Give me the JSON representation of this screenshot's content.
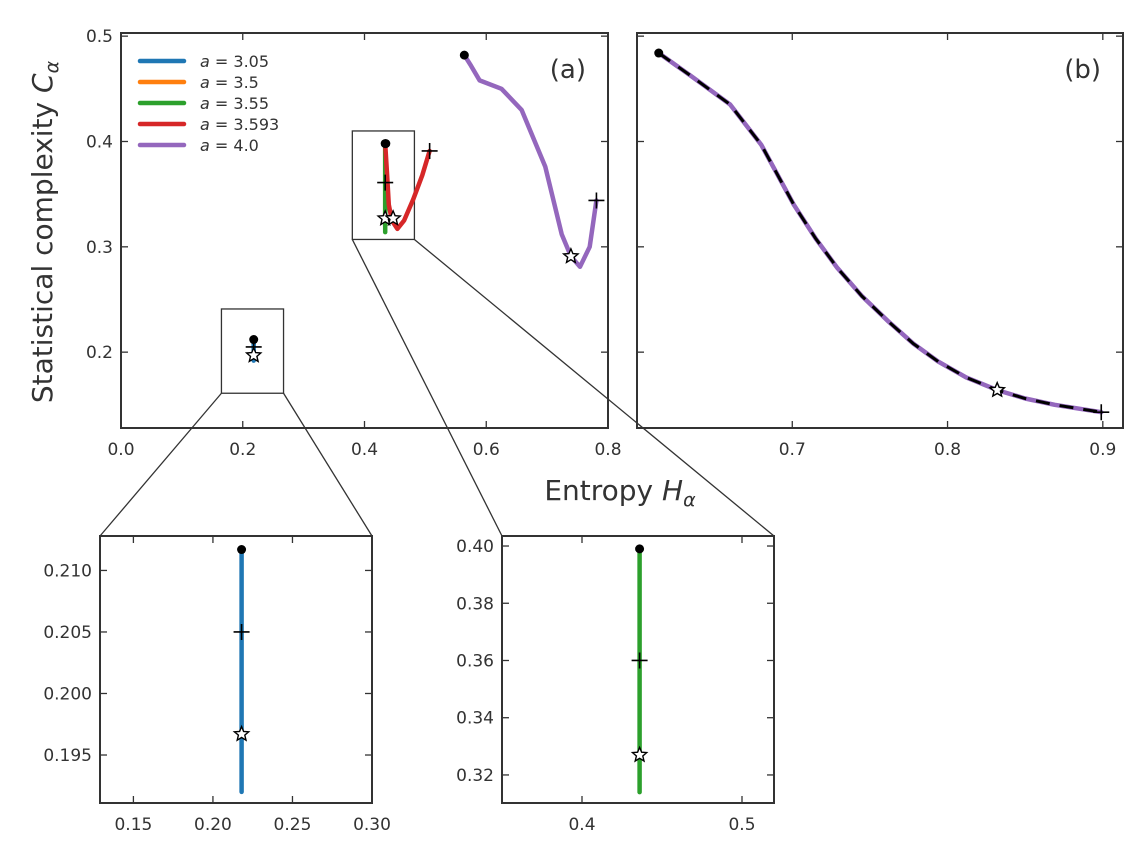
{
  "colors": {
    "a305": "#1f77b4",
    "a35": "#ff7f0e",
    "a355": "#2ca02c",
    "a3593": "#d62728",
    "a40": "#9467bd",
    "frame": "#333333",
    "overlay": "#000000"
  },
  "labels": {
    "xlabel_main": "Entropy",
    "xlabel_sub": "H",
    "ylabel_main": "Statistical complexity",
    "ylabel_sub": "C",
    "subscript": "α"
  },
  "chart_data": [
    {
      "id": "a",
      "type": "line",
      "panel_label": "(a)",
      "xlim": [
        0.0,
        0.8
      ],
      "ylim": [
        0.128,
        0.503
      ],
      "xticks": [
        0.0,
        0.2,
        0.4,
        0.6,
        0.8
      ],
      "xticklabels": [
        "0.0",
        "0.2",
        "0.4",
        "0.6",
        "0.8"
      ],
      "yticks": [
        0.2,
        0.3,
        0.4,
        0.5
      ],
      "yticklabels": [
        "0.2",
        "0.3",
        "0.4",
        "0.5"
      ],
      "legend": "top-left",
      "zoom_boxes": [
        {
          "x": [
            0.165,
            0.267
          ],
          "y": [
            0.161,
            0.241
          ]
        },
        {
          "x": [
            0.38,
            0.482
          ],
          "y": [
            0.307,
            0.41
          ]
        }
      ],
      "series": [
        {
          "name": "a = 3.05",
          "color_key": "a305",
          "x": [
            0.218,
            0.218
          ],
          "y": [
            0.212,
            0.192
          ],
          "start": [
            0.218,
            0.212
          ],
          "plus": [
            0.218,
            0.205
          ],
          "star": [
            0.218,
            0.197
          ]
        },
        {
          "name": "a = 3.5",
          "color_key": "a35",
          "x": [
            0.434,
            0.434
          ],
          "y": [
            0.398,
            0.32
          ],
          "start": null,
          "plus": null,
          "star": null
        },
        {
          "name": "a = 3.55",
          "color_key": "a355",
          "x": [
            0.434,
            0.434
          ],
          "y": [
            0.398,
            0.314
          ],
          "start": [
            0.434,
            0.398
          ],
          "plus": [
            0.434,
            0.361
          ],
          "star": [
            0.434,
            0.327
          ]
        },
        {
          "name": "a = 3.593",
          "color_key": "a3593",
          "x": [
            0.434,
            0.437,
            0.44,
            0.445,
            0.454,
            0.465,
            0.48,
            0.495,
            0.507
          ],
          "y": [
            0.398,
            0.37,
            0.34,
            0.325,
            0.317,
            0.325,
            0.345,
            0.368,
            0.391
          ],
          "start": [
            0.435,
            0.398
          ],
          "plus": [
            0.507,
            0.391
          ],
          "star": [
            0.447,
            0.327
          ]
        },
        {
          "name": "a = 4.0",
          "color_key": "a40",
          "x": [
            0.564,
            0.575,
            0.589,
            0.625,
            0.658,
            0.697,
            0.724,
            0.739,
            0.754,
            0.77,
            0.781
          ],
          "y": [
            0.482,
            0.472,
            0.458,
            0.45,
            0.43,
            0.376,
            0.312,
            0.291,
            0.281,
            0.3,
            0.344
          ],
          "start": [
            0.564,
            0.482
          ],
          "plus": [
            0.781,
            0.344
          ],
          "star": [
            0.739,
            0.291
          ]
        }
      ]
    },
    {
      "id": "b",
      "type": "line",
      "panel_label": "(b)",
      "xlim": [
        0.6,
        0.913
      ],
      "ylim": [
        0.128,
        0.503
      ],
      "xticks": [
        0.7,
        0.8,
        0.9
      ],
      "xticklabels": [
        "0.7",
        "0.8",
        "0.9"
      ],
      "yticks": [
        0.2,
        0.3,
        0.4,
        0.5
      ],
      "yticklabels": [],
      "series": [
        {
          "color_key": "a40",
          "dashed_overlay": true,
          "x": [
            0.614,
            0.635,
            0.66,
            0.68,
            0.701,
            0.715,
            0.729,
            0.745,
            0.762,
            0.778,
            0.794,
            0.812,
            0.832,
            0.85,
            0.869,
            0.899
          ],
          "y": [
            0.484,
            0.462,
            0.435,
            0.397,
            0.34,
            0.308,
            0.28,
            0.253,
            0.229,
            0.208,
            0.191,
            0.176,
            0.164,
            0.156,
            0.15,
            0.143
          ],
          "start": [
            0.614,
            0.484
          ],
          "plus": [
            0.899,
            0.143
          ],
          "star": [
            0.832,
            0.164
          ]
        }
      ]
    },
    {
      "id": "inset1",
      "type": "line",
      "panel_label": "",
      "xlim": [
        0.129,
        0.3
      ],
      "ylim": [
        0.1911,
        0.2128
      ],
      "xticks": [
        0.15,
        0.2,
        0.25,
        0.3
      ],
      "xticklabels": [
        "0.15",
        "0.20",
        "0.25",
        "0.30"
      ],
      "yticks": [
        0.195,
        0.2,
        0.205,
        0.21
      ],
      "yticklabels": [
        "0.195",
        "0.200",
        "0.205",
        "0.210"
      ],
      "series": [
        {
          "color_key": "a305",
          "x": [
            0.218,
            0.218
          ],
          "y": [
            0.2117,
            0.192
          ],
          "start": [
            0.218,
            0.2117
          ],
          "plus": [
            0.218,
            0.205
          ],
          "star": [
            0.218,
            0.1967
          ]
        }
      ]
    },
    {
      "id": "inset2",
      "type": "line",
      "panel_label": "",
      "xlim": [
        0.35,
        0.52
      ],
      "ylim": [
        0.3102,
        0.4035
      ],
      "xticks": [
        0.4,
        0.5
      ],
      "xticklabels": [
        "0.4",
        "0.5"
      ],
      "yticks": [
        0.32,
        0.34,
        0.36,
        0.38,
        0.4
      ],
      "yticklabels": [
        "0.32",
        "0.34",
        "0.36",
        "0.38",
        "0.40"
      ],
      "series": [
        {
          "color_key": "a355",
          "x": [
            0.436,
            0.436
          ],
          "y": [
            0.399,
            0.314
          ],
          "start": [
            0.436,
            0.399
          ],
          "plus": [
            0.436,
            0.36
          ],
          "star": [
            0.436,
            0.327
          ]
        }
      ]
    }
  ]
}
